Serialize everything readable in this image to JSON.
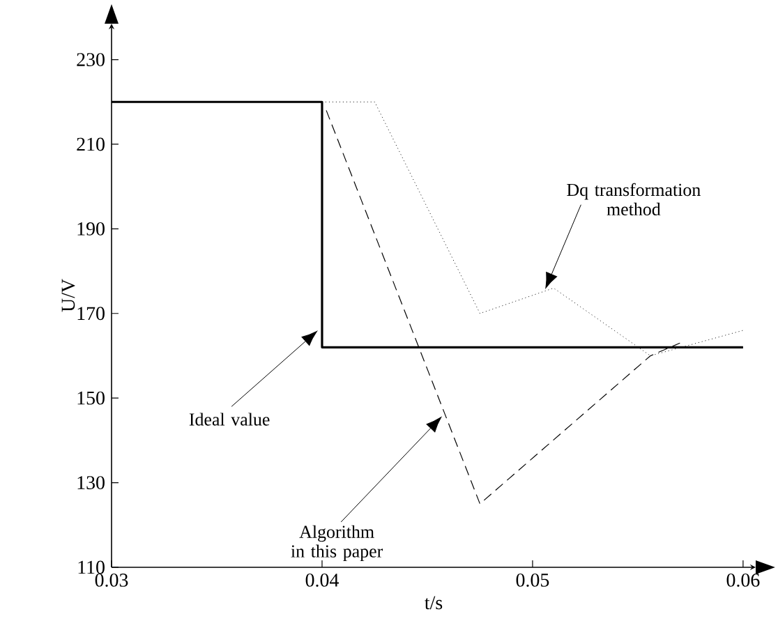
{
  "chart_data": {
    "type": "line",
    "xlabel": "t/s",
    "ylabel": "U/V",
    "xlim": [
      0.03,
      0.0606
    ],
    "ylim": [
      110,
      238.5
    ],
    "xticks": [
      0.03,
      0.04,
      0.05,
      0.06
    ],
    "yticks": [
      110,
      130,
      150,
      170,
      190,
      210,
      230
    ],
    "grid": false,
    "marker": "none",
    "series": [
      {
        "color": "#000000",
        "line_style": "solid",
        "x": [
          0.03,
          0.04,
          0.04,
          0.06
        ],
        "values": [
          220,
          220,
          162,
          162
        ]
      },
      {
        "color": "#000000",
        "line_style": "dotted",
        "x": [
          0.04,
          0.0425,
          0.0475,
          0.051,
          0.0556,
          0.06
        ],
        "values": [
          220,
          220,
          170,
          176,
          160,
          166
        ]
      },
      {
        "color": "#000000",
        "line_style": "dashed",
        "x": [
          0.0402,
          0.0475,
          0.0556,
          0.057
        ],
        "values": [
          218,
          125,
          160,
          163
        ]
      }
    ],
    "annotations": [
      "Dq transformation method",
      "Ideal value",
      "Algorithm in this paper"
    ]
  }
}
